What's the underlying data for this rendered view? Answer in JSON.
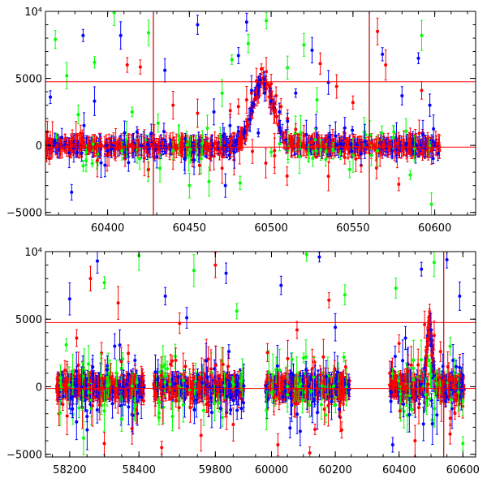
{
  "chart_data": [
    {
      "type": "scatter",
      "panel": "top",
      "xlim": [
        60362,
        60625
      ],
      "ylim": [
        -5200,
        10000
      ],
      "x_ticks": [
        60400,
        60450,
        60500,
        60550,
        60600
      ],
      "x_tick_labels": [
        "60400",
        "60450",
        "60500",
        "60550",
        "60600"
      ],
      "y_ticks": [
        -5000,
        0,
        5000,
        10000
      ],
      "y_tick_labels": [
        "−5000",
        "0",
        "5000",
        "10⁴"
      ],
      "reference_lines": {
        "horizontal": [
          4750,
          -130
        ],
        "vertical": [
          60428,
          60560
        ]
      },
      "series": [
        {
          "color": "#ff0000",
          "points": [
            [
              60365,
              250
            ],
            [
              60375,
              -100
            ],
            [
              60385,
              350
            ],
            [
              60395,
              -50
            ],
            [
              60405,
              150
            ],
            [
              60412,
              6000
            ],
            [
              60420,
              5850
            ],
            [
              60425,
              -1800
            ],
            [
              60440,
              3000
            ],
            [
              60445,
              -500
            ],
            [
              60455,
              2400
            ],
            [
              60465,
              -800
            ],
            [
              60470,
              -1700
            ],
            [
              60475,
              2600
            ],
            [
              60480,
              2900
            ],
            [
              60485,
              3400
            ],
            [
              60488,
              3900
            ],
            [
              60491,
              4800
            ],
            [
              60494,
              5700
            ],
            [
              60497,
              5500
            ],
            [
              60500,
              4600
            ],
            [
              60503,
              3700
            ],
            [
              60506,
              2900
            ],
            [
              60510,
              2000
            ],
            [
              60515,
              1200
            ],
            [
              60520,
              700
            ],
            [
              60525,
              300
            ],
            [
              60530,
              6100
            ],
            [
              60535,
              -2300
            ],
            [
              60540,
              4400
            ],
            [
              60545,
              -900
            ],
            [
              60550,
              3200
            ],
            [
              60555,
              -1500
            ],
            [
              60565,
              8500
            ],
            [
              60570,
              6000
            ],
            [
              60578,
              -2900
            ],
            [
              60585,
              300
            ],
            [
              60592,
              4100
            ],
            [
              60598,
              -400
            ]
          ]
        },
        {
          "color": "#0000ff",
          "points": [
            [
              60365,
              3600
            ],
            [
              60372,
              600
            ],
            [
              60378,
              -3500
            ],
            [
              60385,
              8200
            ],
            [
              60392,
              3300
            ],
            [
              60396,
              -1300
            ],
            [
              60400,
              -400
            ],
            [
              60408,
              8200
            ],
            [
              60418,
              1000
            ],
            [
              60435,
              5600
            ],
            [
              60447,
              -1000
            ],
            [
              60455,
              9000
            ],
            [
              60465,
              2500
            ],
            [
              60472,
              -3000
            ],
            [
              60480,
              6700
            ],
            [
              60485,
              9200
            ],
            [
              60488,
              4100
            ],
            [
              60492,
              4500
            ],
            [
              60496,
              3900
            ],
            [
              60500,
              3300
            ],
            [
              60505,
              2500
            ],
            [
              60510,
              1800
            ],
            [
              60515,
              3900
            ],
            [
              60525,
              7100
            ],
            [
              60535,
              4700
            ],
            [
              60545,
              1300
            ],
            [
              60555,
              -600
            ],
            [
              60568,
              6800
            ],
            [
              60580,
              3700
            ],
            [
              60590,
              6500
            ],
            [
              60597,
              3000
            ]
          ]
        },
        {
          "color": "#00ff00",
          "points": [
            [
              60368,
              7900
            ],
            [
              60375,
              5200
            ],
            [
              60382,
              2300
            ],
            [
              60392,
              6200
            ],
            [
              60404,
              9900
            ],
            [
              60415,
              2500
            ],
            [
              60425,
              8400
            ],
            [
              60432,
              -1700
            ],
            [
              60440,
              -400
            ],
            [
              60450,
              -3000
            ],
            [
              60462,
              -2700
            ],
            [
              60470,
              3900
            ],
            [
              60476,
              6400
            ],
            [
              60481,
              -2800
            ],
            [
              60486,
              7600
            ],
            [
              60497,
              9300
            ],
            [
              60510,
              5800
            ],
            [
              60520,
              7500
            ],
            [
              60528,
              3400
            ],
            [
              60538,
              -400
            ],
            [
              60548,
              -1800
            ],
            [
              60565,
              -400
            ],
            [
              60575,
              1000
            ],
            [
              60585,
              -2200
            ],
            [
              60592,
              8200
            ],
            [
              60598,
              -4400
            ]
          ]
        }
      ],
      "baseline_band": {
        "x": [
          60362,
          60603
        ],
        "y": [
          -700,
          600
        ]
      },
      "hump": {
        "center": 60495,
        "peak": 5200
      }
    },
    {
      "type": "scatter",
      "panel": "bottom",
      "axis_breaks": true,
      "segments": [
        {
          "xlim": [
            58130,
            58430
          ],
          "x_ticks": [
            58200,
            58400
          ],
          "x_tick_labels": [
            "58200",
            "58400"
          ],
          "data_range": [
            58162,
            58415
          ]
        },
        {
          "xlim": [
            59620,
            59890
          ],
          "x_ticks": [
            59800
          ],
          "x_tick_labels": [
            "59800"
          ],
          "data_range": [
            59628,
            59880
          ]
        },
        {
          "xlim": [
            59930,
            60640
          ],
          "x_ticks": [
            60000,
            60200,
            60400,
            60600
          ],
          "x_tick_labels": [
            "60000",
            "60200",
            "60400",
            "60600"
          ],
          "data_ranges": [
            [
              59980,
              60245
            ],
            [
              60370,
              60605
            ]
          ]
        }
      ],
      "ylim": [
        -5200,
        10000
      ],
      "y_ticks": [
        -5000,
        0,
        5000,
        10000
      ],
      "y_tick_labels": [
        "−5000",
        "0",
        "5000",
        "10⁴"
      ],
      "reference_lines": {
        "horizontal": [
          4750,
          -130
        ],
        "vertical": [
          60540
        ]
      },
      "series": [
        {
          "color": "#ff0000",
          "points": [
            [
              58180,
              -1300
            ],
            [
              58220,
              3600
            ],
            [
              58260,
              8000
            ],
            [
              58300,
              -4200
            ],
            [
              58340,
              6200
            ],
            [
              58380,
              -3100
            ],
            [
              59650,
              -4500
            ],
            [
              59700,
              4700
            ],
            [
              59760,
              -3600
            ],
            [
              59800,
              9000
            ],
            [
              59850,
              -2800
            ],
            [
              60020,
              -4300
            ],
            [
              60080,
              4200
            ],
            [
              60120,
              -4900
            ],
            [
              60180,
              6400
            ],
            [
              60220,
              -3200
            ],
            [
              60400,
              3200
            ],
            [
              60450,
              -4000
            ],
            [
              60480,
              4600
            ],
            [
              60495,
              5200
            ],
            [
              60510,
              3800
            ],
            [
              60530,
              2600
            ],
            [
              60560,
              -3500
            ],
            [
              60590,
              800
            ]
          ]
        },
        {
          "color": "#0000ff",
          "points": [
            [
              58200,
              6500
            ],
            [
              58250,
              -2200
            ],
            [
              58280,
              9300
            ],
            [
              58330,
              3000
            ],
            [
              58370,
              -1500
            ],
            [
              59660,
              6700
            ],
            [
              59720,
              5100
            ],
            [
              59790,
              -1900
            ],
            [
              59830,
              8400
            ],
            [
              60030,
              7500
            ],
            [
              60090,
              -3300
            ],
            [
              60150,
              9600
            ],
            [
              60200,
              4400
            ],
            [
              60380,
              -4300
            ],
            [
              60420,
              3600
            ],
            [
              60470,
              8700
            ],
            [
              60500,
              4200
            ],
            [
              60550,
              9400
            ],
            [
              60590,
              6700
            ]
          ]
        },
        {
          "color": "#00ff00",
          "points": [
            [
              58190,
              3100
            ],
            [
              58240,
              -3800
            ],
            [
              58300,
              7700
            ],
            [
              58350,
              -2400
            ],
            [
              58400,
              9700
            ],
            [
              59680,
              -2200
            ],
            [
              59740,
              8600
            ],
            [
              59810,
              -1200
            ],
            [
              59860,
              5600
            ],
            [
              60050,
              -600
            ],
            [
              60110,
              9800
            ],
            [
              60170,
              -2100
            ],
            [
              60230,
              6800
            ],
            [
              60390,
              7300
            ],
            [
              60440,
              -1700
            ],
            [
              60510,
              9200
            ],
            [
              60560,
              3000
            ],
            [
              60600,
              -4200
            ]
          ]
        }
      ],
      "bands": [
        {
          "x": [
            58162,
            58415
          ],
          "y": [
            -1200,
            800
          ]
        },
        {
          "x": [
            59628,
            59880
          ],
          "y": [
            -1200,
            800
          ]
        },
        {
          "x": [
            59980,
            60245
          ],
          "y": [
            -1200,
            800
          ]
        },
        {
          "x": [
            60370,
            60605
          ],
          "y": [
            -1000,
            600
          ]
        }
      ],
      "hump": {
        "center": 60495,
        "peak": 5000
      }
    }
  ]
}
